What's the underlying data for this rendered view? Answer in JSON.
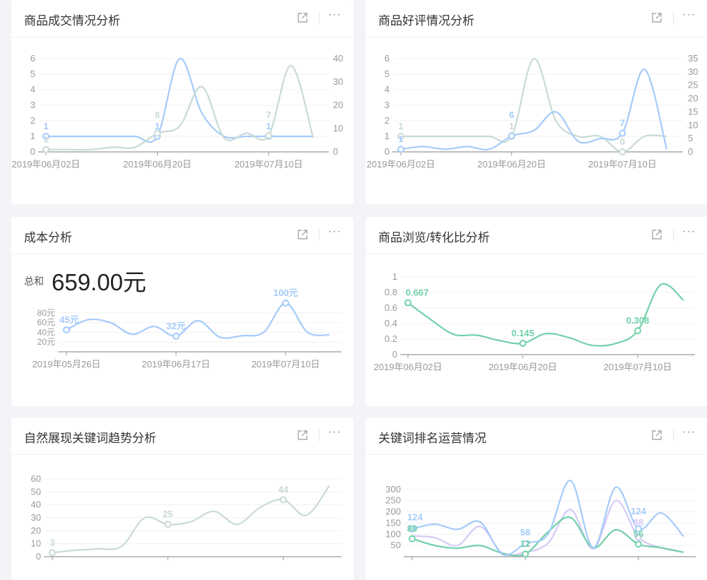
{
  "cards": [
    {
      "title": "商品成交情况分析"
    },
    {
      "title": "商品好评情况分析"
    },
    {
      "title": "成本分析",
      "sum_label": "总和",
      "sum_value": "659.00元"
    },
    {
      "title": "商品浏览/转化比分析"
    },
    {
      "title": "自然展现关键词趋势分析"
    },
    {
      "title": "关键词排名运营情况"
    }
  ],
  "icons": {
    "open": "external-link-icon",
    "more": "more-icon"
  },
  "more_glyph": "···",
  "colors": {
    "blue": "#a4cbfa",
    "gray": "#c9dad6",
    "green": "#72d0aa",
    "purple": "#d5cbf8"
  },
  "chart_data": [
    {
      "type": "line",
      "categories": [
        "2019年06月02日",
        "",
        "",
        "",
        "",
        "2019年06月20日",
        "",
        "",
        "",
        "",
        "2019年07月10日",
        "",
        ""
      ],
      "ylim": [
        0,
        6
      ],
      "y_ticks": [
        0,
        1,
        2,
        3,
        4,
        5,
        6
      ],
      "ylim_right": [
        0,
        40
      ],
      "y_ticks_right": [
        0,
        10,
        20,
        30,
        40
      ],
      "series": [
        {
          "axis": "left",
          "color": "#a4cbfa",
          "values": [
            1,
            1,
            1,
            1,
            1,
            1,
            6,
            2.5,
            1,
            1,
            1,
            1,
            1
          ],
          "labeled_points": [
            0,
            5,
            10
          ]
        },
        {
          "axis": "right",
          "color": "#c9dad6",
          "values": [
            1,
            1,
            1,
            2,
            2,
            8,
            11,
            28,
            6,
            8,
            7,
            37,
            6
          ],
          "labeled_points": [
            0,
            5,
            10
          ]
        }
      ]
    },
    {
      "type": "line",
      "categories": [
        "2019年06月02日",
        "",
        "",
        "",
        "",
        "2019年06月20日",
        "",
        "",
        "",
        "",
        "2019年07月10日",
        "",
        ""
      ],
      "ylim": [
        0,
        6
      ],
      "y_ticks": [
        0,
        1,
        2,
        3,
        4,
        5,
        6
      ],
      "ylim_right": [
        0,
        35
      ],
      "y_ticks_right": [
        0,
        5,
        10,
        15,
        20,
        25,
        30,
        35
      ],
      "series": [
        {
          "axis": "left",
          "color": "#c9dad6",
          "values": [
            1,
            1,
            1,
            1,
            1,
            1,
            6,
            2,
            1,
            1,
            0,
            1,
            1
          ],
          "labeled_points": [
            0,
            5,
            10
          ]
        },
        {
          "axis": "right",
          "color": "#a4cbfa",
          "values": [
            1,
            2,
            1,
            2,
            1,
            6,
            8,
            15,
            4,
            5,
            7,
            31,
            1
          ],
          "labeled_points": [
            0,
            5,
            10
          ]
        }
      ]
    },
    {
      "type": "line",
      "categories": [
        "2019年05月26日",
        "",
        "",
        "",
        "",
        "2019年06月17日",
        "",
        "",
        "",
        "",
        "2019年07月10日",
        "",
        ""
      ],
      "ylim": [
        0,
        100
      ],
      "y_ticks": [
        20,
        40,
        60,
        80
      ],
      "y_tick_suffix": "元",
      "series": [
        {
          "axis": "left",
          "color": "#a4cbfa",
          "values": [
            45,
            66,
            60,
            36,
            52,
            32,
            64,
            30,
            33,
            40,
            100,
            40,
            35
          ],
          "labeled_points": [
            0,
            5,
            10
          ],
          "label_suffix": "元"
        }
      ]
    },
    {
      "type": "line",
      "categories": [
        "2019年06月02日",
        "",
        "",
        "",
        "",
        "2019年06月20日",
        "",
        "",
        "",
        "",
        "2019年07月10日",
        "",
        ""
      ],
      "ylim": [
        0,
        1
      ],
      "y_ticks": [
        0,
        0.2,
        0.4,
        0.6,
        0.8,
        1
      ],
      "series": [
        {
          "axis": "left",
          "color": "#72d0aa",
          "values": [
            0.667,
            0.45,
            0.26,
            0.25,
            0.18,
            0.145,
            0.27,
            0.22,
            0.12,
            0.14,
            0.308,
            0.9,
            0.7
          ],
          "labeled_points": [
            0,
            5,
            10
          ]
        }
      ]
    },
    {
      "type": "line",
      "categories": [
        "",
        "",
        "",
        "",
        "",
        "",
        "",
        "",
        "",
        "",
        "",
        "",
        ""
      ],
      "ylim": [
        0,
        60
      ],
      "y_ticks": [
        0,
        10,
        20,
        30,
        40,
        50,
        60
      ],
      "series": [
        {
          "axis": "left",
          "color": "#c9dad6",
          "values": [
            3,
            5,
            6,
            8,
            30,
            25,
            27,
            35,
            25,
            38,
            44,
            32,
            55
          ],
          "labeled_points": [
            0,
            5,
            10
          ]
        }
      ]
    },
    {
      "type": "line",
      "categories": [
        "",
        "",
        "",
        "",
        "",
        "",
        "",
        "",
        "",
        "",
        "",
        "",
        ""
      ],
      "ylim": [
        0,
        350
      ],
      "y_ticks": [
        50,
        100,
        150,
        200,
        250,
        300
      ],
      "series": [
        {
          "axis": "left",
          "color": "#d5cbf8",
          "values": [
            93,
            85,
            50,
            135,
            15,
            20,
            60,
            210,
            35,
            250,
            88,
            40,
            20
          ],
          "labeled_points": [
            10
          ]
        },
        {
          "axis": "left",
          "color": "#72d0aa",
          "values": [
            80,
            50,
            38,
            50,
            15,
            12,
            110,
            175,
            40,
            120,
            56,
            40,
            20
          ],
          "labeled_points": [
            0,
            5,
            10
          ]
        },
        {
          "axis": "left",
          "color": "#a4cbfa",
          "values": [
            124,
            145,
            122,
            155,
            10,
            58,
            100,
            340,
            40,
            310,
            124,
            195,
            90
          ],
          "labeled_points": [
            0,
            5,
            10
          ]
        }
      ]
    }
  ]
}
